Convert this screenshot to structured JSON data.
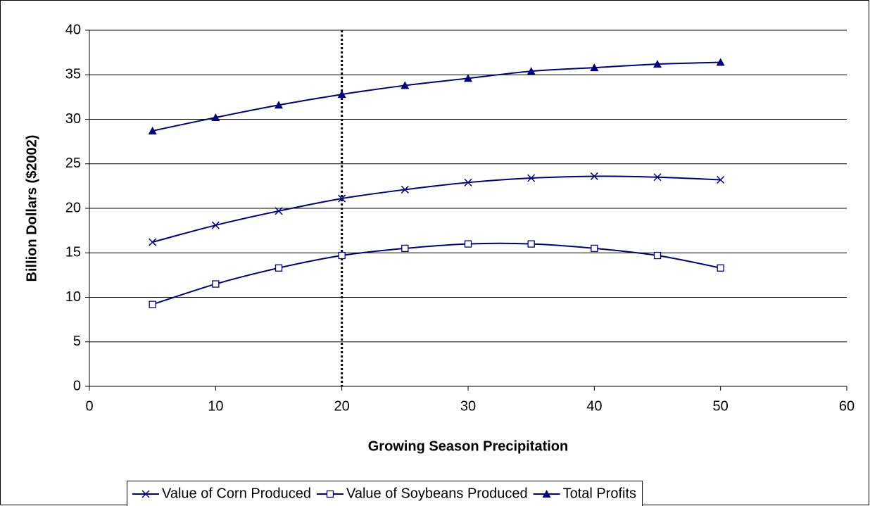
{
  "chart_data": {
    "type": "line",
    "x_label": "Growing Season Precipitation",
    "y_label": "Billion Dollars ($2002)",
    "x": [
      5,
      10,
      15,
      20,
      25,
      30,
      35,
      40,
      45,
      50
    ],
    "series": [
      {
        "name": "Value of Corn Produced",
        "color": "#000080",
        "marker": "x",
        "values": [
          16.2,
          18.1,
          19.7,
          21.1,
          22.1,
          22.9,
          23.4,
          23.6,
          23.5,
          23.2
        ]
      },
      {
        "name": "Value of Soybeans Produced",
        "color": "#000080",
        "marker": "square",
        "values": [
          9.2,
          11.5,
          13.3,
          14.7,
          15.5,
          16.0,
          16.0,
          15.5,
          14.7,
          13.3
        ]
      },
      {
        "name": "Total Profits",
        "color": "#000080",
        "marker": "triangle",
        "values": [
          28.7,
          30.2,
          31.6,
          32.8,
          33.8,
          34.6,
          35.4,
          35.8,
          36.2,
          36.4
        ]
      }
    ],
    "reference_x": 20,
    "xlim": [
      0,
      60
    ],
    "xticks": [
      0,
      10,
      20,
      30,
      40,
      50,
      60
    ],
    "ylim": [
      0,
      40
    ],
    "yticks": [
      0,
      5,
      10,
      15,
      20,
      25,
      30,
      35,
      40
    ],
    "grid": true,
    "legend": "bottom"
  }
}
